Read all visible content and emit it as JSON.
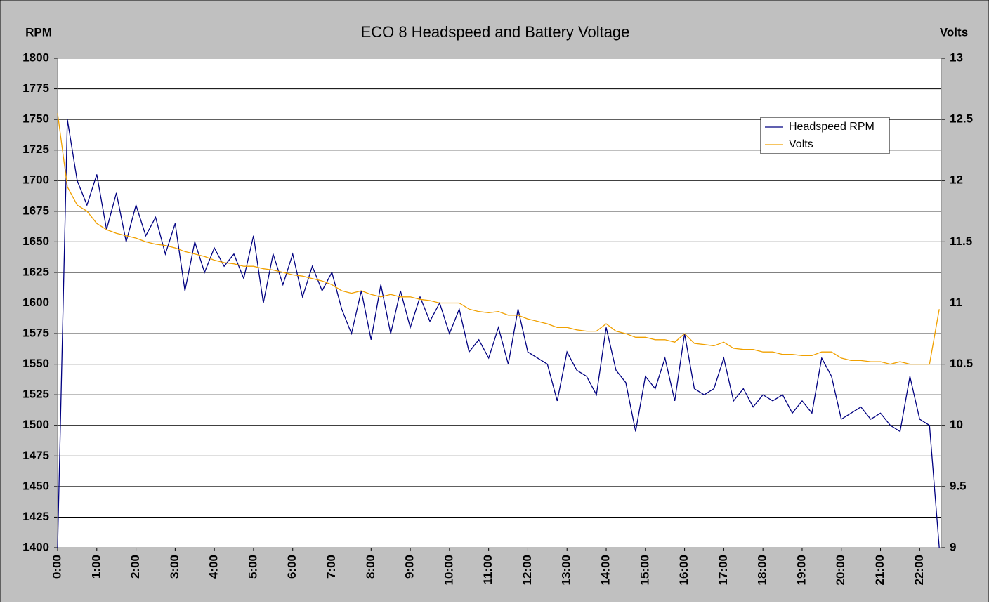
{
  "chart_data": {
    "type": "line",
    "title": "ECO 8 Headspeed and Battery Voltage",
    "y_label": "RPM",
    "y2_label": "Volts",
    "x": [
      0,
      0.25,
      0.5,
      0.75,
      1,
      1.25,
      1.5,
      1.75,
      2,
      2.25,
      2.5,
      2.75,
      3,
      3.25,
      3.5,
      3.75,
      4,
      4.25,
      4.5,
      4.75,
      5,
      5.25,
      5.5,
      5.75,
      6,
      6.25,
      6.5,
      6.75,
      7,
      7.25,
      7.5,
      7.75,
      8,
      8.25,
      8.5,
      8.75,
      9,
      9.25,
      9.5,
      9.75,
      10,
      10.25,
      10.5,
      10.75,
      11,
      11.25,
      11.5,
      11.75,
      12,
      12.25,
      12.5,
      12.75,
      13,
      13.25,
      13.5,
      13.75,
      14,
      14.25,
      14.5,
      14.75,
      15,
      15.25,
      15.5,
      15.75,
      16,
      16.25,
      16.5,
      16.75,
      17,
      17.25,
      17.5,
      17.75,
      18,
      18.25,
      18.5,
      18.75,
      19,
      19.25,
      19.5,
      19.75,
      20,
      20.25,
      20.5,
      20.75,
      21,
      21.25,
      21.5,
      21.75,
      22,
      22.25,
      22.5
    ],
    "series": [
      {
        "name": "Headspeed RPM",
        "color": "#000080",
        "values": [
          1400,
          1750,
          1700,
          1680,
          1705,
          1660,
          1690,
          1650,
          1680,
          1655,
          1670,
          1640,
          1665,
          1610,
          1650,
          1625,
          1645,
          1630,
          1640,
          1620,
          1655,
          1600,
          1640,
          1615,
          1640,
          1605,
          1630,
          1610,
          1625,
          1595,
          1575,
          1610,
          1570,
          1615,
          1575,
          1610,
          1580,
          1605,
          1585,
          1600,
          1575,
          1595,
          1560,
          1570,
          1555,
          1580,
          1550,
          1595,
          1560,
          1555,
          1550,
          1520,
          1560,
          1545,
          1540,
          1525,
          1580,
          1545,
          1535,
          1495,
          1540,
          1530,
          1555,
          1520,
          1575,
          1530,
          1525,
          1530,
          1555,
          1520,
          1530,
          1515,
          1525,
          1520,
          1525,
          1510,
          1520,
          1510,
          1555,
          1540,
          1505,
          1510,
          1515,
          1505,
          1510,
          1500,
          1495,
          1540,
          1505,
          1500,
          1400
        ]
      },
      {
        "name": "Volts",
        "color": "#f0a000",
        "axis": "y2",
        "values": [
          12.55,
          11.95,
          11.8,
          11.75,
          11.65,
          11.6,
          11.57,
          11.55,
          11.53,
          11.5,
          11.48,
          11.47,
          11.45,
          11.42,
          11.4,
          11.38,
          11.35,
          11.33,
          11.32,
          11.3,
          11.3,
          11.28,
          11.27,
          11.25,
          11.23,
          11.22,
          11.2,
          11.18,
          11.15,
          11.1,
          11.08,
          11.1,
          11.07,
          11.05,
          11.07,
          11.05,
          11.05,
          11.03,
          11.02,
          11,
          11,
          11,
          10.95,
          10.93,
          10.92,
          10.93,
          10.9,
          10.9,
          10.87,
          10.85,
          10.83,
          10.8,
          10.8,
          10.78,
          10.77,
          10.77,
          10.83,
          10.77,
          10.75,
          10.72,
          10.72,
          10.7,
          10.7,
          10.68,
          10.75,
          10.67,
          10.66,
          10.65,
          10.68,
          10.63,
          10.62,
          10.62,
          10.6,
          10.6,
          10.58,
          10.58,
          10.57,
          10.57,
          10.6,
          10.6,
          10.55,
          10.53,
          10.53,
          10.52,
          10.52,
          10.5,
          10.52,
          10.5,
          10.5,
          10.5,
          10.95
        ]
      }
    ],
    "xlim": [
      0,
      22.55
    ],
    "xticks": [
      {
        "value": 0,
        "label": "0:00"
      },
      {
        "value": 1,
        "label": "1:00"
      },
      {
        "value": 2,
        "label": "2:00"
      },
      {
        "value": 3,
        "label": "3:00"
      },
      {
        "value": 4,
        "label": "4:00"
      },
      {
        "value": 5,
        "label": "5:00"
      },
      {
        "value": 6,
        "label": "6:00"
      },
      {
        "value": 7,
        "label": "7:00"
      },
      {
        "value": 8,
        "label": "8:00"
      },
      {
        "value": 9,
        "label": "9:00"
      },
      {
        "value": 10,
        "label": "10:00"
      },
      {
        "value": 11,
        "label": "11:00"
      },
      {
        "value": 12,
        "label": "12:00"
      },
      {
        "value": 13,
        "label": "13:00"
      },
      {
        "value": 14,
        "label": "14:00"
      },
      {
        "value": 15,
        "label": "15:00"
      },
      {
        "value": 16,
        "label": "16:00"
      },
      {
        "value": 17,
        "label": "17:00"
      },
      {
        "value": 18,
        "label": "18:00"
      },
      {
        "value": 19,
        "label": "19:00"
      },
      {
        "value": 20,
        "label": "20:00"
      },
      {
        "value": 21,
        "label": "21:00"
      },
      {
        "value": 22,
        "label": "22:00"
      }
    ],
    "ylim": [
      1400,
      1800
    ],
    "yticks": [
      1400,
      1425,
      1450,
      1475,
      1500,
      1525,
      1550,
      1575,
      1600,
      1625,
      1650,
      1675,
      1700,
      1725,
      1750,
      1775,
      1800
    ],
    "y2lim": [
      9,
      13
    ],
    "y2ticks": [
      9,
      9.5,
      10,
      10.5,
      11,
      11.5,
      12,
      12.5,
      13
    ],
    "grid": true,
    "legend": "top-right"
  }
}
